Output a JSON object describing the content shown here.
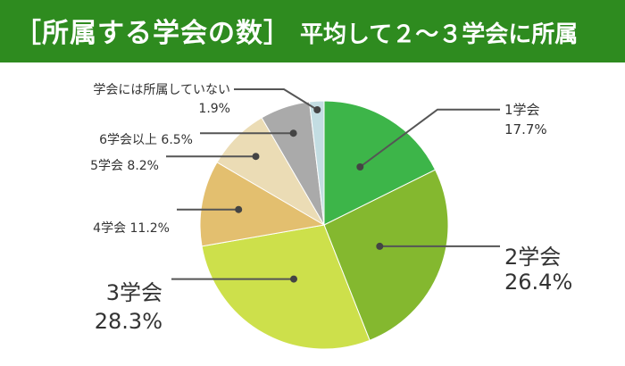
{
  "header": {
    "title": "［所属する学会の数］",
    "subtitle": "平均して２～３学会に所属"
  },
  "colors": {
    "banner": "#2e8b1f",
    "line": "#555555",
    "text": "#333333"
  },
  "chart_data": {
    "type": "pie",
    "title": "［所属する学会の数］",
    "subtitle": "平均して２～３学会に所属",
    "slices": [
      {
        "name": "1学会",
        "value": 17.7,
        "label": "17.7%",
        "color": "#3db549"
      },
      {
        "name": "2学会",
        "value": 26.4,
        "label": "26.4%",
        "color": "#84b82f"
      },
      {
        "name": "3学会",
        "value": 28.3,
        "label": "28.3%",
        "color": "#cde04b"
      },
      {
        "name": "4学会",
        "value": 11.2,
        "label": "11.2%",
        "color": "#e3bf6f"
      },
      {
        "name": "5学会",
        "value": 8.2,
        "label": "8.2%",
        "color": "#ebdcb5"
      },
      {
        "name": "6学会以上",
        "value": 6.5,
        "label": "6.5%",
        "color": "#aaaaaa"
      },
      {
        "name": "学会には所属していない",
        "value": 1.9,
        "label": "1.9%",
        "color": "#c3dde2"
      }
    ]
  }
}
